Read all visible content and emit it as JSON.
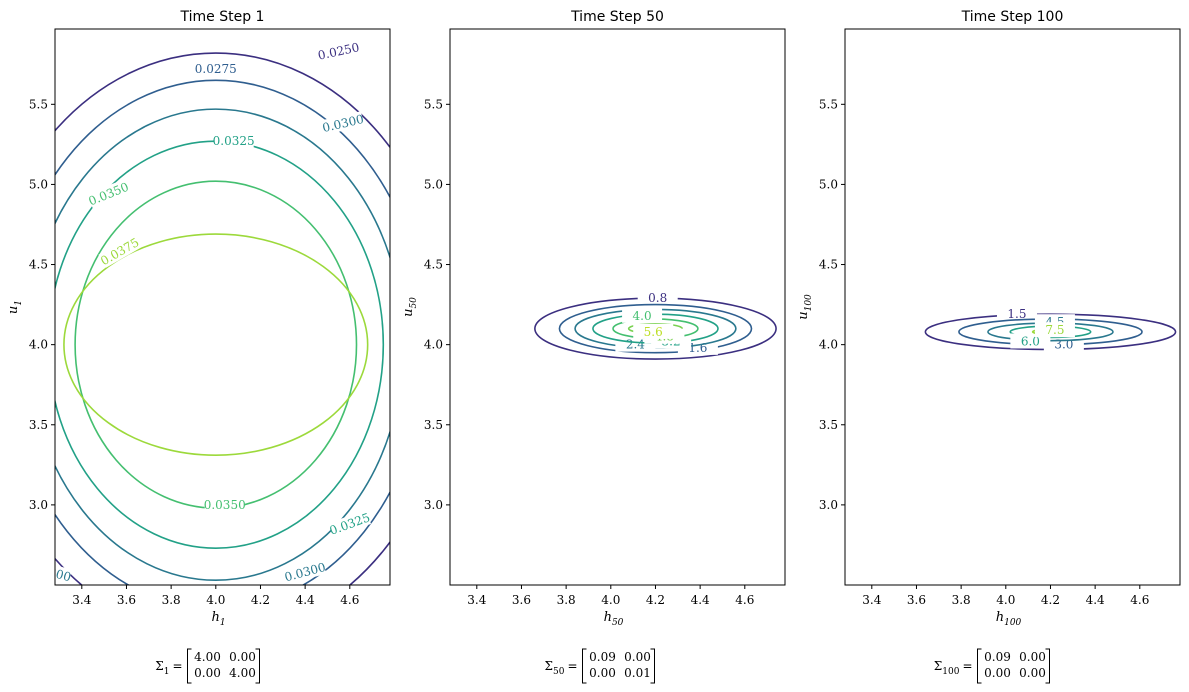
{
  "chart_data": [
    {
      "type": "contour",
      "title": "Time Step 1",
      "xlabel": "h",
      "xlabel_sub": "1",
      "ylabel": "u",
      "ylabel_sub": "1",
      "xlim": [
        3.28,
        4.78
      ],
      "ylim": [
        2.5,
        5.97
      ],
      "xticks": [
        "3.4",
        "3.6",
        "3.8",
        "4.0",
        "4.2",
        "4.4",
        "4.6"
      ],
      "yticks": [
        "3.0",
        "3.5",
        "4.0",
        "4.5",
        "5.0",
        "5.5"
      ],
      "mean": [
        4.0,
        4.0
      ],
      "contours": [
        {
          "level": "0.0250",
          "color": "#3b2f80",
          "rx": 1.06,
          "ry": 1.82,
          "labels": [
            [
              4.55,
              5.83,
              -12
            ]
          ]
        },
        {
          "level": "0.0275",
          "color": "#2f5e8f",
          "rx": 0.94,
          "ry": 1.65,
          "labels": [
            [
              4.0,
              5.72,
              0
            ]
          ]
        },
        {
          "level": "0.0300",
          "color": "#29788e",
          "rx": 0.84,
          "ry": 1.47,
          "labels": [
            [
              4.57,
              5.38,
              -13
            ],
            [
              3.26,
              2.58,
              15
            ],
            [
              4.4,
              2.58,
              -15
            ]
          ]
        },
        {
          "level": "0.0325",
          "color": "#22a187",
          "rx": 0.75,
          "ry": 1.27,
          "labels": [
            [
              4.08,
              5.27,
              0
            ],
            [
              4.6,
              2.88,
              -20
            ]
          ]
        },
        {
          "level": "0.0350",
          "color": "#44bf70",
          "rx": 0.63,
          "ry": 1.02,
          "labels": [
            [
              3.52,
              4.94,
              -22
            ],
            [
              4.04,
              3.0,
              0
            ]
          ]
        },
        {
          "level": "0.0375",
          "color": "#9cd93b",
          "rx": 0.68,
          "ry": 0.69,
          "labels": [
            [
              3.57,
              4.58,
              -30
            ]
          ]
        }
      ],
      "covariance": {
        "symbol": "Σ",
        "sub": "1",
        "matrix": [
          [
            "4.00",
            "0.00"
          ],
          [
            "0.00",
            "4.00"
          ]
        ]
      }
    },
    {
      "type": "contour",
      "title": "Time Step 50",
      "xlabel": "h",
      "xlabel_sub": "50",
      "ylabel": "u",
      "ylabel_sub": "50",
      "xlim": [
        3.28,
        4.78
      ],
      "ylim": [
        2.5,
        5.97
      ],
      "xticks": [
        "3.4",
        "3.6",
        "3.8",
        "4.0",
        "4.2",
        "4.4",
        "4.6"
      ],
      "yticks": [
        "3.0",
        "3.5",
        "4.0",
        "4.5",
        "5.0",
        "5.5"
      ],
      "mean": [
        4.2,
        4.1
      ],
      "contours": [
        {
          "level": "0.8",
          "color": "#3b2f80",
          "rx": 0.54,
          "ry": 0.19,
          "labels": [
            [
              4.21,
              4.29,
              0
            ]
          ]
        },
        {
          "level": "1.6",
          "color": "#2f5e8f",
          "rx": 0.43,
          "ry": 0.15,
          "labels": [
            [
              4.39,
              3.98,
              0
            ]
          ]
        },
        {
          "level": "2.4",
          "color": "#29788e",
          "rx": 0.36,
          "ry": 0.12,
          "labels": [
            [
              4.11,
              4.0,
              0
            ]
          ]
        },
        {
          "level": "3.2",
          "color": "#22a187",
          "rx": 0.28,
          "ry": 0.09,
          "labels": [
            [
              4.27,
              4.02,
              0
            ]
          ]
        },
        {
          "level": "4.0",
          "color": "#44bf70",
          "rx": 0.19,
          "ry": 0.06,
          "labels": [
            [
              4.14,
              4.18,
              0
            ]
          ]
        },
        {
          "level": "4.8",
          "color": "#7ad151",
          "rx": 0.12,
          "ry": 0.03,
          "labels": [
            [
              4.24,
              4.05,
              0
            ]
          ]
        },
        {
          "level": "5.6",
          "color": "#bddf26",
          "rx": 0.06,
          "ry": 0.015,
          "labels": [
            [
              4.19,
              4.08,
              0
            ]
          ]
        }
      ],
      "covariance": {
        "symbol": "Σ",
        "sub": "50",
        "matrix": [
          [
            "0.09",
            "0.00"
          ],
          [
            "0.00",
            "0.01"
          ]
        ]
      }
    },
    {
      "type": "contour",
      "title": "Time Step 100",
      "xlabel": "h",
      "xlabel_sub": "100",
      "ylabel": "u",
      "ylabel_sub": "100",
      "xlim": [
        3.28,
        4.78
      ],
      "ylim": [
        2.5,
        5.97
      ],
      "xticks": [
        "3.4",
        "3.6",
        "3.8",
        "4.0",
        "4.2",
        "4.4",
        "4.6"
      ],
      "yticks": [
        "3.0",
        "3.5",
        "4.0",
        "4.5",
        "5.0",
        "5.5"
      ],
      "mean": [
        4.2,
        4.08
      ],
      "contours": [
        {
          "level": "1.5",
          "color": "#3b2f80",
          "rx": 0.56,
          "ry": 0.11,
          "labels": [
            [
              4.05,
              4.19,
              0
            ]
          ]
        },
        {
          "level": "3.0",
          "color": "#2f5e8f",
          "rx": 0.41,
          "ry": 0.08,
          "labels": [
            [
              4.26,
              4.0,
              0
            ]
          ]
        },
        {
          "level": "4.5",
          "color": "#29788e",
          "rx": 0.28,
          "ry": 0.055,
          "labels": [
            [
              4.22,
              4.14,
              0
            ]
          ]
        },
        {
          "level": "6.0",
          "color": "#22a187",
          "rx": 0.18,
          "ry": 0.035,
          "labels": [
            [
              4.11,
              4.02,
              0
            ]
          ]
        },
        {
          "level": "7.5",
          "color": "#9cd93b",
          "rx": 0.08,
          "ry": 0.015,
          "labels": [
            [
              4.22,
              4.09,
              0
            ]
          ]
        }
      ],
      "covariance": {
        "symbol": "Σ",
        "sub": "100",
        "matrix": [
          [
            "0.09",
            "0.00"
          ],
          [
            "0.00",
            "0.00"
          ]
        ]
      }
    }
  ]
}
